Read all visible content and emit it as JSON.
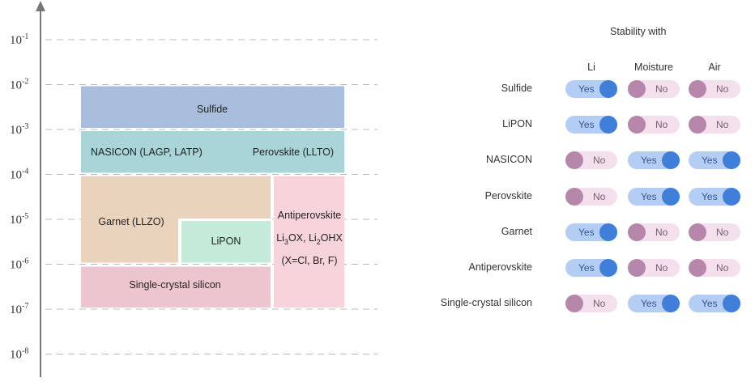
{
  "axis": {
    "ticks": [
      {
        "base": "10",
        "exp": "-1",
        "value": 0.1
      },
      {
        "base": "10",
        "exp": "-2",
        "value": 0.01
      },
      {
        "base": "10",
        "exp": "-3",
        "value": 0.001
      },
      {
        "base": "10",
        "exp": "-4",
        "value": 0.0001
      },
      {
        "base": "10",
        "exp": "-5",
        "value": 1e-05
      },
      {
        "base": "10",
        "exp": "-6",
        "value": 1e-06
      },
      {
        "base": "10",
        "exp": "-7",
        "value": 1e-07
      },
      {
        "base": "10",
        "exp": "-8",
        "value": 1e-08
      }
    ],
    "scale": "log"
  },
  "materials": [
    {
      "id": "sulfide",
      "label": "Sulfide",
      "range": [
        0.001,
        0.01
      ],
      "color": "#a9bddd"
    },
    {
      "id": "nasicon",
      "label": "NASICON (LAGP, LATP)",
      "range": [
        0.0001,
        0.001
      ],
      "color": "#a9d5d9"
    },
    {
      "id": "perovskite",
      "label": "Perovskite (LLTO)",
      "range": [
        0.0001,
        0.001
      ],
      "color": "#a9d5d9"
    },
    {
      "id": "garnet",
      "label": "Garnet (LLZO)",
      "range": [
        1e-06,
        0.0001
      ],
      "color": "#ead3bd"
    },
    {
      "id": "lipon",
      "label": "LiPON",
      "range": [
        1e-06,
        1e-05
      ],
      "color": "#c4ead9"
    },
    {
      "id": "antiperovskite",
      "lines": [
        "Antiperovskite",
        "Li",
        "3",
        "OX, Li",
        "2",
        "OHX",
        "(X=Cl, Br, F)"
      ],
      "range": [
        1e-07,
        0.0001
      ],
      "color": "#f7d3dc"
    },
    {
      "id": "single-crystal-silicon",
      "label": "Single-crystal silicon",
      "range": [
        1e-07,
        1e-06
      ],
      "color": "#ecc5cf"
    }
  ],
  "stability": {
    "title": "Stability with",
    "columns": [
      "Li",
      "Moisture",
      "Air"
    ],
    "rows": [
      {
        "label": "Sulfide",
        "values": [
          "Yes",
          "No",
          "No"
        ]
      },
      {
        "label": "LiPON",
        "values": [
          "Yes",
          "No",
          "No"
        ]
      },
      {
        "label": "NASICON",
        "values": [
          "No",
          "Yes",
          "Yes"
        ]
      },
      {
        "label": "Perovskite",
        "values": [
          "No",
          "Yes",
          "Yes"
        ]
      },
      {
        "label": "Garnet",
        "values": [
          "Yes",
          "No",
          "No"
        ]
      },
      {
        "label": "Antiperovskite",
        "values": [
          "Yes",
          "No",
          "No"
        ]
      },
      {
        "label": "Single-crystal silicon",
        "values": [
          "No",
          "Yes",
          "Yes"
        ]
      }
    ]
  },
  "colors": {
    "axis": "#777777",
    "gridline": "#bbbbbb",
    "yes_track": "#b3cdf4",
    "yes_knob": "#3f7fd9",
    "no_track": "#f4e0ec",
    "no_knob": "#b687ab"
  }
}
